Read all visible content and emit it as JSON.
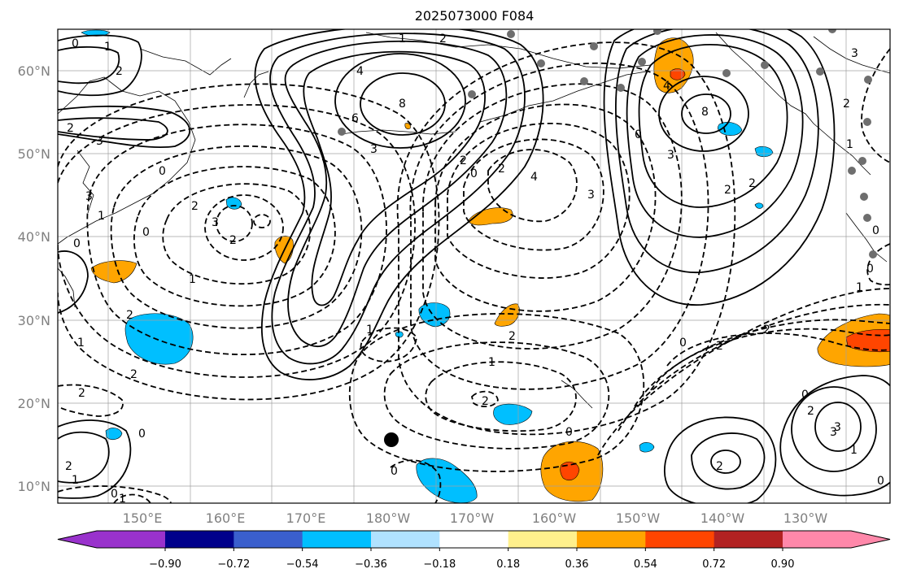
{
  "title": "2025073000 F084",
  "lat_labels": [
    "60°N",
    "50°N",
    "40°N",
    "30°N",
    "20°N",
    "10°N"
  ],
  "lon_labels": [
    "150°E",
    "160°E",
    "170°E",
    "180°W",
    "170°W",
    "160°W",
    "150°W",
    "140°W",
    "130°W"
  ],
  "colorbar": {
    "colors": [
      "#9932cc",
      "#00008b",
      "#3a5fcd",
      "#00bfff",
      "#b0e2ff",
      "#ffffff",
      "#fff08c",
      "#ffa500",
      "#ff4500",
      "#b22222",
      "#ff88aa"
    ],
    "ticks": [
      "−0.90",
      "−0.72",
      "−0.54",
      "−0.36",
      "−0.18",
      "0.18",
      "0.36",
      "0.54",
      "0.72",
      "0.90"
    ]
  },
  "contour_labels": [
    "0",
    "1",
    "2",
    "2",
    "3",
    "4",
    "6",
    "8",
    "4",
    "8",
    "3",
    "2",
    "2",
    "1",
    "0",
    "1",
    "2",
    "3",
    "2",
    "0",
    "0",
    "1",
    "2",
    "2",
    "1",
    "0",
    "1",
    "2",
    "3",
    "2",
    "4",
    "2",
    "0",
    "2",
    "3",
    "2",
    "0",
    "1",
    "0",
    "2",
    "3",
    "3",
    "2",
    "1",
    "0",
    "1",
    "2",
    "1",
    "0",
    "0",
    "0",
    "0",
    "2",
    "1",
    "2",
    "3",
    "2",
    "1",
    "0",
    "0",
    "2",
    "3"
  ],
  "marker": {
    "color": "#000000"
  }
}
